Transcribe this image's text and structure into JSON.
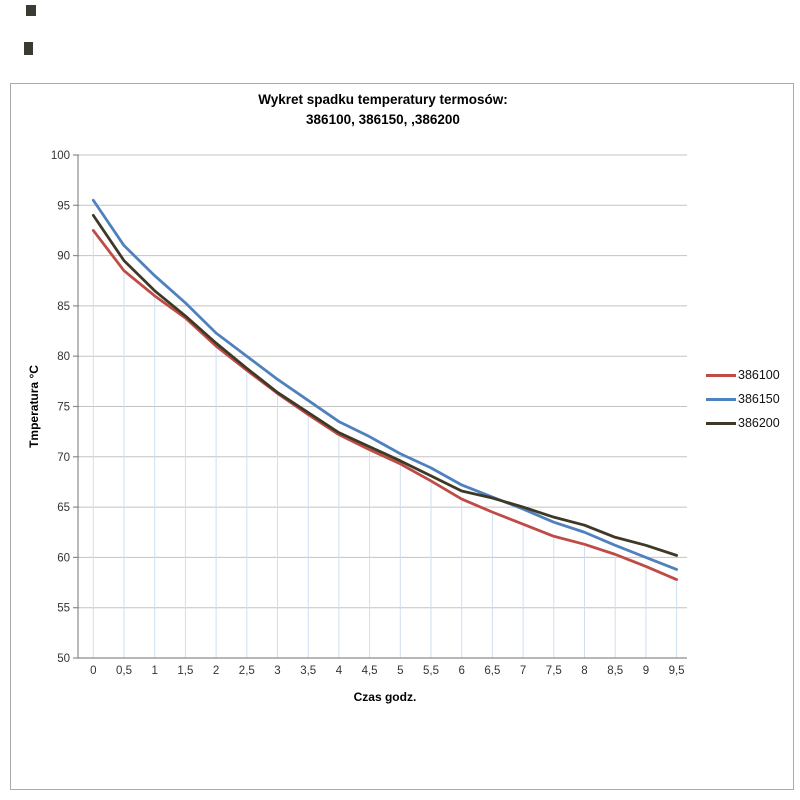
{
  "chart_data": {
    "type": "line",
    "title_line1": "Wykret spadku temperatury termosów:",
    "title_line2": "386100, 386150, ,386200",
    "xlabel": "Czas godz.",
    "ylabel": "Tmperatura °C",
    "ylim": [
      50,
      100
    ],
    "y_tick_step": 5,
    "y_tick_labels": [
      "100",
      "95",
      "90",
      "85",
      "80",
      "75",
      "70",
      "65",
      "60",
      "55",
      "50"
    ],
    "x_tick_labels": [
      "0",
      "0,5",
      "1",
      "1,5",
      "2",
      "2,5",
      "3",
      "3,5",
      "4",
      "4,5",
      "5",
      "5,5",
      "6",
      "6,5",
      "7",
      "7,5",
      "8",
      "8,5",
      "9",
      "9,5"
    ],
    "x_values": [
      0,
      0.5,
      1,
      1.5,
      2,
      2.5,
      3,
      3.5,
      4,
      4.5,
      5,
      5.5,
      6,
      6.5,
      7,
      7.5,
      8,
      8.5,
      9,
      9.5
    ],
    "grid": {
      "horizontal_gridlines": true,
      "vertical_drop_lines_to_lowest_series": true
    },
    "legend_position": "right",
    "series": [
      {
        "name": "386100",
        "color": "#BF4B47",
        "values": [
          92.5,
          88.5,
          86.0,
          83.8,
          81.0,
          78.6,
          76.3,
          74.2,
          72.2,
          70.7,
          69.3,
          67.6,
          65.8,
          64.5,
          63.3,
          62.1,
          61.3,
          60.3,
          59.1,
          57.8
        ]
      },
      {
        "name": "386150",
        "color": "#4E81BD",
        "values": [
          95.5,
          91.0,
          88.0,
          85.3,
          82.3,
          80.0,
          77.7,
          75.6,
          73.5,
          72.0,
          70.3,
          68.9,
          67.2,
          66.0,
          64.8,
          63.5,
          62.5,
          61.2,
          60.0,
          58.8
        ]
      },
      {
        "name": "386200",
        "color": "#3E3926",
        "values": [
          94.0,
          89.5,
          86.5,
          84.0,
          81.3,
          78.8,
          76.4,
          74.4,
          72.4,
          71.0,
          69.6,
          68.1,
          66.6,
          65.9,
          65.0,
          64.0,
          63.2,
          62.0,
          61.2,
          60.2
        ]
      }
    ],
    "colors": {
      "gridline": "#c3c3c3",
      "axis": "#8c8c8c",
      "drop_line": "#cedff2",
      "frame_border": "#ababab",
      "tick_text": "#333333",
      "title_text": "#000000"
    }
  }
}
